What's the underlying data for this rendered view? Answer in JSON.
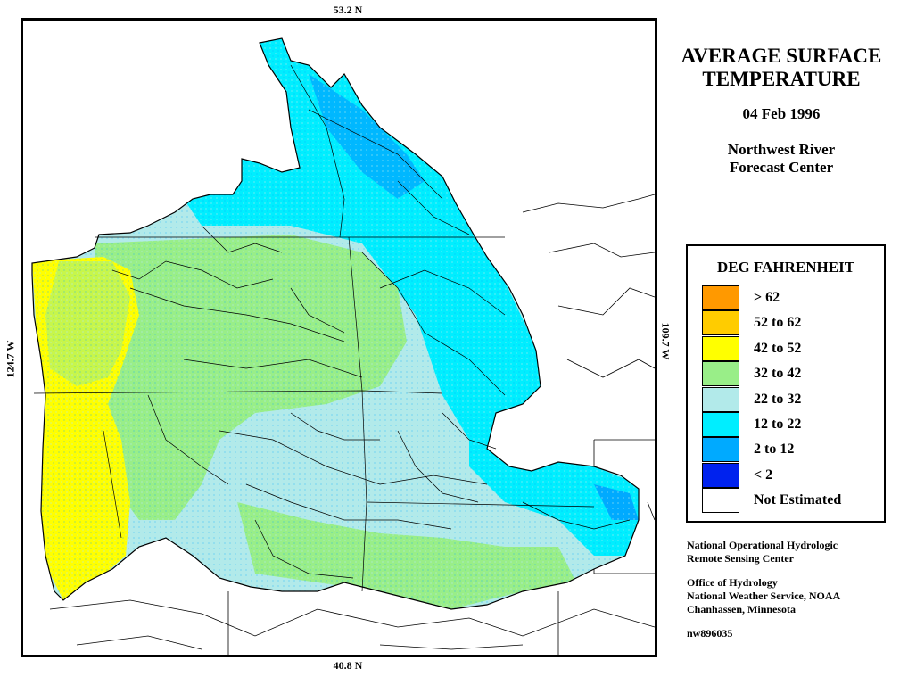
{
  "labels": {
    "top_lat": "53.2 N",
    "bottom_lat": "40.8 N",
    "left_lon": "124.7 W",
    "right_lon": "109.7 W"
  },
  "title": {
    "line1": "AVERAGE SURFACE",
    "line2": "TEMPERATURE",
    "date": "04 Feb 1996",
    "center_line1": "Northwest River",
    "center_line2": "Forecast Center"
  },
  "legend": {
    "title": "DEG FAHRENHEIT",
    "items": [
      {
        "label": "> 62",
        "color": "#ff9900"
      },
      {
        "label": "52 to 62",
        "color": "#ffcc00"
      },
      {
        "label": "42 to 52",
        "color": "#ffff00"
      },
      {
        "label": "32 to 42",
        "color": "#99ee88"
      },
      {
        "label": "22 to 32",
        "color": "#b2eaea"
      },
      {
        "label": "12 to 22",
        "color": "#00eeff"
      },
      {
        "label": "2 to 12",
        "color": "#00aaff"
      },
      {
        "label": "< 2",
        "color": "#0022ee"
      },
      {
        "label": "Not Estimated",
        "color": "#ffffff"
      }
    ]
  },
  "credits": {
    "org_line1": "National Operational Hydrologic",
    "org_line2": "Remote Sensing Center",
    "office_line1": "Office of Hydrology",
    "office_line2": "National Weather Service, NOAA",
    "office_line3": "Chanhassen, Minnesota",
    "product_id": "nw896035"
  }
}
